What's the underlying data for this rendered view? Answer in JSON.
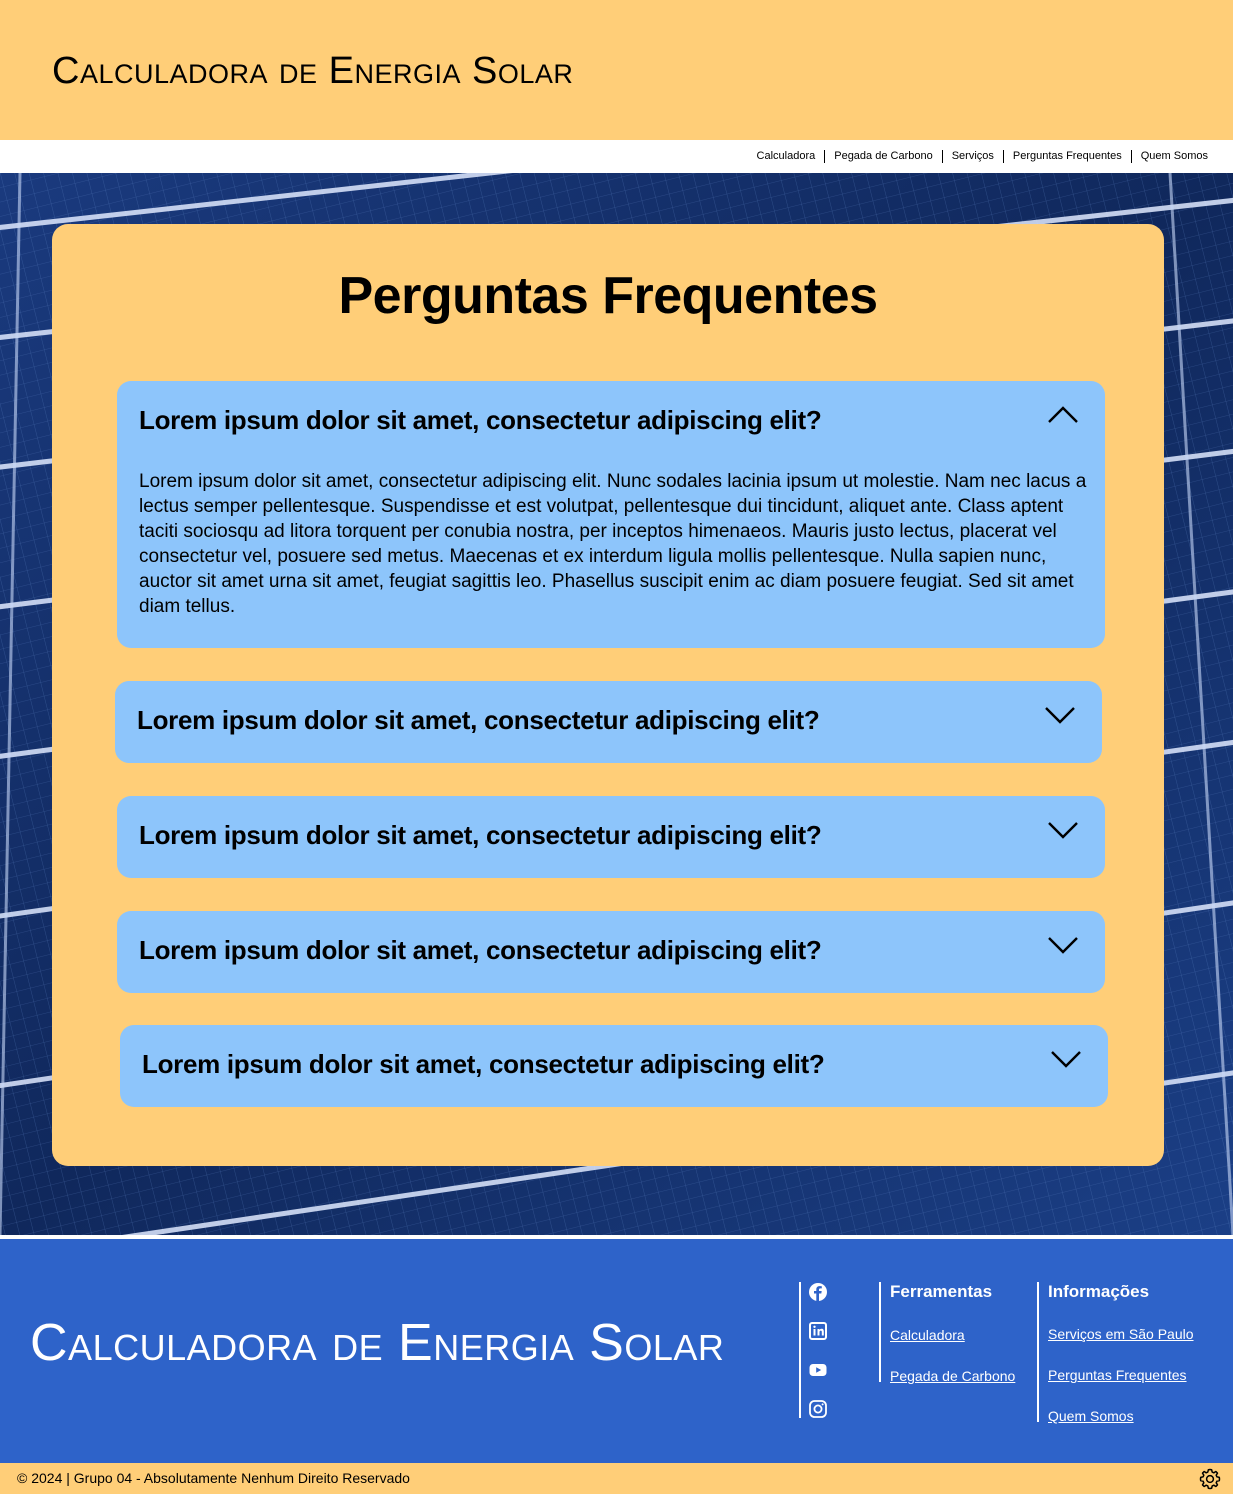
{
  "header": {
    "brand": "Calculadora de Energia Solar"
  },
  "nav": {
    "items": [
      "Calculadora",
      "Pegada de Carbono",
      "Serviços",
      "Perguntas Frequentes",
      "Quem Somos"
    ]
  },
  "faq": {
    "title": "Perguntas Frequentes",
    "items": [
      {
        "question": "Lorem ipsum dolor sit amet, consectetur adipiscing elit?",
        "answer": "Lorem ipsum dolor sit amet, consectetur adipiscing elit. Nunc sodales lacinia ipsum ut molestie. Nam nec lacus a lectus semper pellentesque. Suspendisse et est volutpat, pellentesque dui tincidunt, aliquet ante. Class aptent taciti sociosqu ad litora torquent per conubia nostra, per inceptos himenaeos. Mauris justo lectus, placerat vel consectetur vel, posuere sed metus. Maecenas et ex interdum ligula mollis pellentesque. Nulla sapien nunc, auctor sit amet urna sit amet, feugiat sagittis leo. Phasellus suscipit enim ac diam posuere feugiat. Sed sit amet diam tellus.",
        "expanded": true,
        "icon": "chevron-up-icon"
      },
      {
        "question": "Lorem ipsum dolor sit amet, consectetur adipiscing elit?",
        "expanded": false,
        "icon": "chevron-down-icon"
      },
      {
        "question": "Lorem ipsum dolor sit amet, consectetur adipiscing elit?",
        "expanded": false,
        "icon": "chevron-down-icon"
      },
      {
        "question": "Lorem ipsum dolor sit amet, consectetur adipiscing elit?",
        "expanded": false,
        "icon": "chevron-down-icon"
      },
      {
        "question": "Lorem ipsum dolor sit amet, consectetur adipiscing elit?",
        "expanded": false,
        "icon": "chevron-down-icon"
      }
    ]
  },
  "footer": {
    "brand": "Calculadora de Energia Solar",
    "social": [
      "facebook-icon",
      "linkedin-icon",
      "youtube-icon",
      "instagram-icon"
    ],
    "tools": {
      "title": "Ferramentas",
      "links": [
        "Calculadora",
        "Pegada de Carbono"
      ]
    },
    "info": {
      "title": "Informações",
      "links": [
        "Serviços em São Paulo",
        "Perguntas Frequentes",
        "Quem Somos"
      ]
    },
    "copyright": "© 2024 | Grupo 04 - Absolutamente Nenhum Direito Reservado"
  },
  "colors": {
    "yellow": "#FFCE78",
    "light_blue": "#8DC5FB",
    "footer_blue": "#2E63C9"
  }
}
